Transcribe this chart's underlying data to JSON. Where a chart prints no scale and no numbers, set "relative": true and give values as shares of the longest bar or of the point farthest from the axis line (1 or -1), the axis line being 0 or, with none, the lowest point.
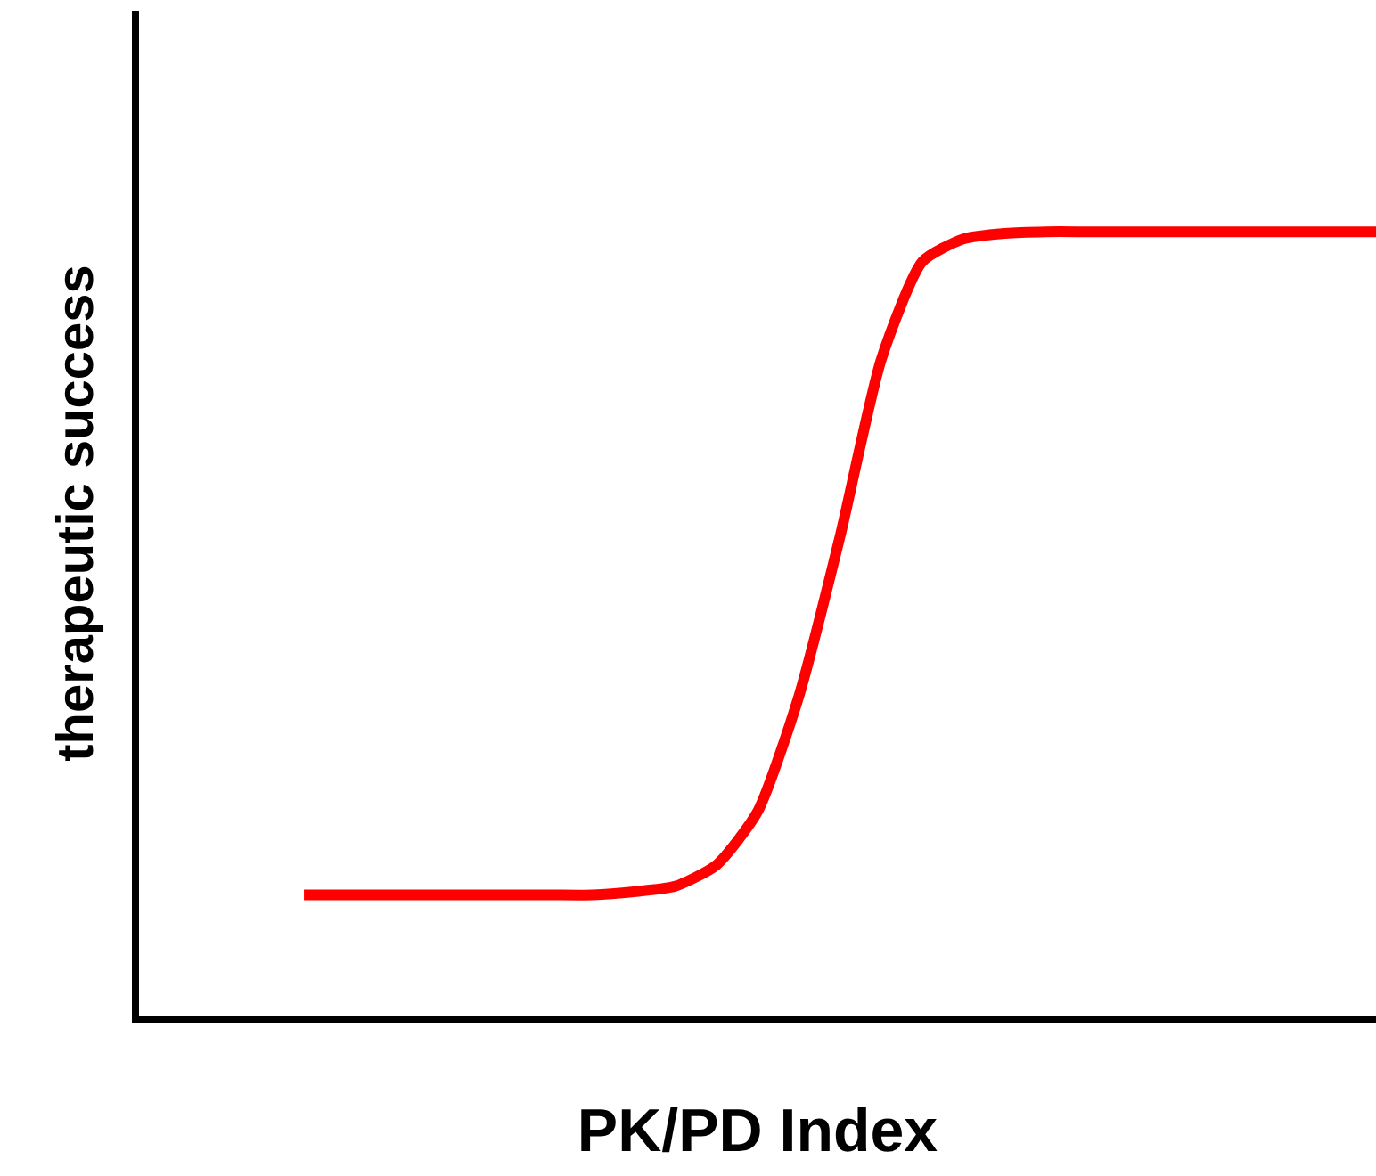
{
  "chart_data": {
    "type": "line",
    "relative": true,
    "xlabel": "PK/PD Index",
    "ylabel": "therapeutic success",
    "categories": [
      null,
      null,
      null,
      null,
      null,
      null,
      null,
      null,
      null,
      null,
      null,
      null,
      null,
      null,
      null,
      null,
      null,
      null,
      null,
      null,
      null,
      null,
      null,
      null,
      null,
      null,
      null,
      null,
      null,
      null,
      null
    ],
    "series": [
      {
        "color": "#ff0000",
        "values": [
          null,
          null,
          null,
          null,
          0.154,
          0.154,
          0.154,
          0.154,
          0.154,
          0.154,
          0.154,
          0.154,
          0.158,
          0.165,
          0.192,
          0.26,
          0.407,
          0.611,
          0.837,
          0.962,
          0.991,
          0.998,
          1,
          1,
          1,
          1,
          1,
          1,
          1,
          1,
          1
        ]
      }
    ],
    "grid": false,
    "marker": "none",
    "line_style": "solid"
  }
}
